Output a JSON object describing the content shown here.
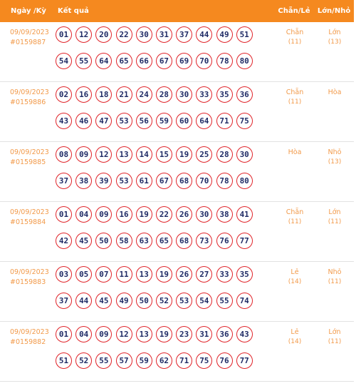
{
  "header": {
    "date_label": "Ngày /Kỳ",
    "result_label": "Kết quả",
    "chan_le_label": "Chẵn/Lẻ",
    "lon_nho_label": "Lớn/Nhỏ"
  },
  "rows": [
    {
      "date": "09/09/2023",
      "draw": "#0159887",
      "numbers": [
        "01",
        "12",
        "20",
        "22",
        "30",
        "31",
        "37",
        "44",
        "49",
        "51",
        "54",
        "55",
        "64",
        "65",
        "66",
        "67",
        "69",
        "70",
        "78",
        "80"
      ],
      "chan_le": "Chẵn",
      "chan_le_count": "(11)",
      "lon_nho": "Lớn",
      "lon_nho_count": "(13)"
    },
    {
      "date": "09/09/2023",
      "draw": "#0159886",
      "numbers": [
        "02",
        "16",
        "18",
        "21",
        "24",
        "28",
        "30",
        "33",
        "35",
        "36",
        "43",
        "46",
        "47",
        "53",
        "56",
        "59",
        "60",
        "64",
        "71",
        "75"
      ],
      "chan_le": "Chẵn",
      "chan_le_count": "(11)",
      "lon_nho": "Hòa",
      "lon_nho_count": ""
    },
    {
      "date": "09/09/2023",
      "draw": "#0159885",
      "numbers": [
        "08",
        "09",
        "12",
        "13",
        "14",
        "15",
        "19",
        "25",
        "28",
        "30",
        "37",
        "38",
        "39",
        "53",
        "61",
        "67",
        "68",
        "70",
        "78",
        "80"
      ],
      "chan_le": "Hòa",
      "chan_le_count": "",
      "lon_nho": "Nhỏ",
      "lon_nho_count": "(13)"
    },
    {
      "date": "09/09/2023",
      "draw": "#0159884",
      "numbers": [
        "01",
        "04",
        "09",
        "16",
        "19",
        "22",
        "26",
        "30",
        "38",
        "41",
        "42",
        "45",
        "50",
        "58",
        "63",
        "65",
        "68",
        "73",
        "76",
        "77"
      ],
      "chan_le": "Chẵn",
      "chan_le_count": "(11)",
      "lon_nho": "Lớn",
      "lon_nho_count": "(11)"
    },
    {
      "date": "09/09/2023",
      "draw": "#0159883",
      "numbers": [
        "03",
        "05",
        "07",
        "11",
        "13",
        "19",
        "26",
        "27",
        "33",
        "35",
        "37",
        "44",
        "45",
        "49",
        "50",
        "52",
        "53",
        "54",
        "55",
        "74"
      ],
      "chan_le": "Lẻ",
      "chan_le_count": "(14)",
      "lon_nho": "Nhỏ",
      "lon_nho_count": "(11)"
    },
    {
      "date": "09/09/2023",
      "draw": "#0159882",
      "numbers": [
        "01",
        "04",
        "09",
        "12",
        "13",
        "19",
        "23",
        "31",
        "36",
        "43",
        "51",
        "52",
        "55",
        "57",
        "59",
        "62",
        "71",
        "75",
        "76",
        "77"
      ],
      "chan_le": "Lẻ",
      "chan_le_count": "(14)",
      "lon_nho": "Lớn",
      "lon_nho_count": "(11)"
    }
  ],
  "colors": {
    "header_bg": "#f5891f",
    "accent_text": "#f29a4a",
    "ball_border": "#e0242a",
    "ball_text": "#1f2b66"
  }
}
